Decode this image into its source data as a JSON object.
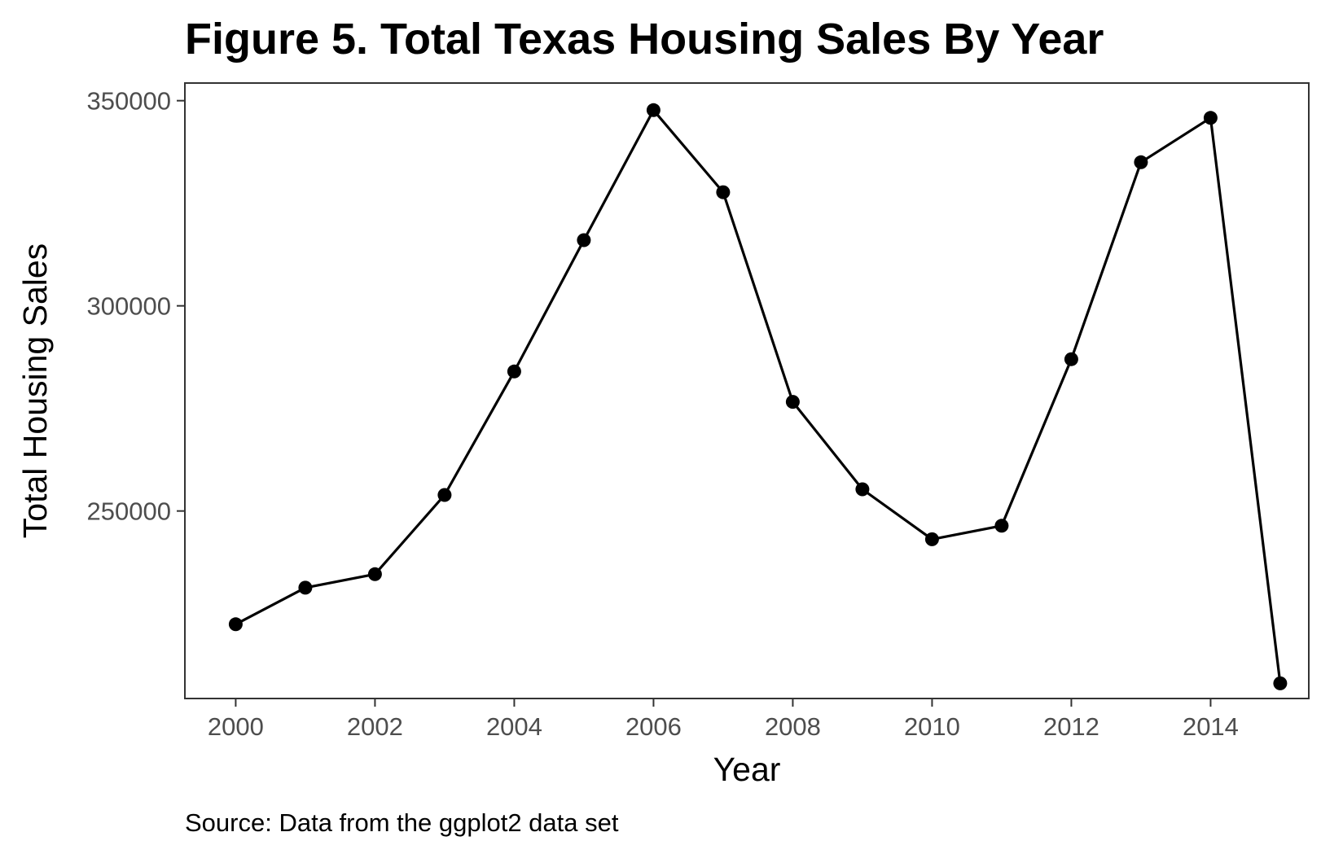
{
  "chart_data": {
    "type": "line",
    "title": "Figure 5. Total Texas Housing Sales By Year",
    "xlabel": "Year",
    "ylabel": "Total Housing Sales",
    "caption": "Source: Data from the ggplot2 data set",
    "x": [
      2000,
      2001,
      2002,
      2003,
      2004,
      2005,
      2006,
      2007,
      2008,
      2009,
      2010,
      2011,
      2012,
      2013,
      2014,
      2015
    ],
    "series": [
      {
        "values": [
          222400,
          231300,
          234600,
          253900,
          284000,
          316000,
          347700,
          327700,
          276600,
          255300,
          243100,
          246400,
          287000,
          335000,
          345800,
          208000
        ]
      }
    ],
    "xlim": [
      1999.27,
      2015.41
    ],
    "ylim": [
      204300,
      354300
    ],
    "x_ticks": [
      2000,
      2002,
      2004,
      2006,
      2008,
      2010,
      2012,
      2014
    ],
    "x_tick_labels": [
      "2000",
      "2002",
      "2004",
      "2006",
      "2008",
      "2010",
      "2012",
      "2014"
    ],
    "y_ticks": [
      250000,
      300000,
      350000
    ],
    "y_tick_labels": [
      "250000",
      "300000",
      "350000"
    ],
    "grid": false,
    "line_color": "#000000",
    "point_color": "#000000",
    "panel_border_color": "#333333"
  }
}
